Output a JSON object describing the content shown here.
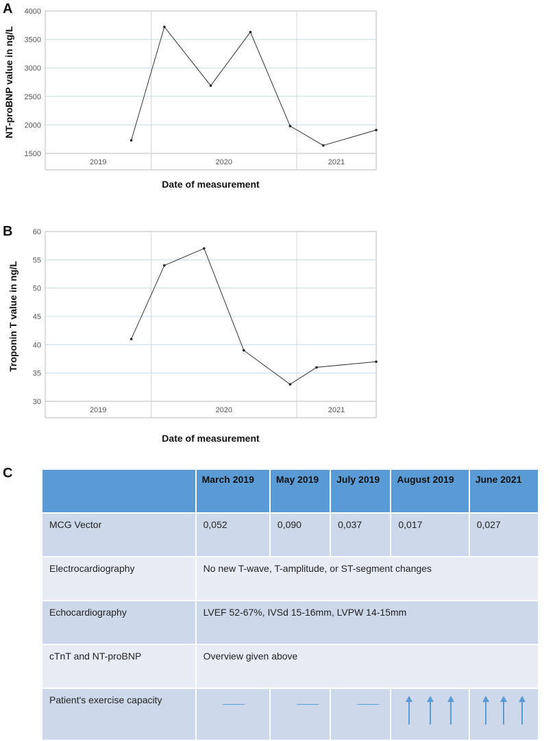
{
  "panels": {
    "a": "A",
    "b": "B",
    "c": "C"
  },
  "chart_data": [
    {
      "type": "line",
      "ylabel": "NT-proBNP value in ng/L",
      "xlabel": "Date of measurement",
      "ylim": [
        1500,
        4000
      ],
      "yticks": [
        1500,
        2000,
        2500,
        3000,
        3500,
        4000
      ],
      "xlim": [
        2019.0,
        2021.5
      ],
      "year_sections": [
        {
          "label": "2019",
          "start": 2019.0,
          "end": 2019.8
        },
        {
          "label": "2020",
          "start": 2019.8,
          "end": 2020.9
        },
        {
          "label": "2021",
          "start": 2020.9,
          "end": 2021.5
        }
      ],
      "x": [
        2019.65,
        2019.9,
        2020.25,
        2020.55,
        2020.85,
        2021.1,
        2021.5
      ],
      "values": [
        1730,
        3720,
        2690,
        3630,
        1980,
        1640,
        1910
      ],
      "grid": true
    },
    {
      "type": "line",
      "ylabel": "Troponin T value in ng/L",
      "xlabel": "Date of measurement",
      "ylim": [
        30,
        60
      ],
      "yticks": [
        30,
        35,
        40,
        45,
        50,
        55,
        60
      ],
      "xlim": [
        2019.0,
        2021.5
      ],
      "year_sections": [
        {
          "label": "2019",
          "start": 2019.0,
          "end": 2019.8
        },
        {
          "label": "2020",
          "start": 2019.8,
          "end": 2020.9
        },
        {
          "label": "2021",
          "start": 2020.9,
          "end": 2021.5
        }
      ],
      "x": [
        2019.65,
        2019.9,
        2020.2,
        2020.5,
        2020.85,
        2021.05,
        2021.5
      ],
      "values": [
        41,
        54,
        57,
        39,
        33,
        36,
        37
      ],
      "grid": true
    }
  ],
  "table": {
    "headers": [
      "",
      "March 2019",
      "May 2019",
      "July 2019",
      "August 2019",
      "June 2021"
    ],
    "mcg": {
      "label": "MCG Vector",
      "values": [
        "0,052",
        "0,090",
        "0,037",
        "0,017",
        "0,027"
      ]
    },
    "ecg": {
      "label": "Electrocardiography",
      "text": "No new T-wave, T-amplitude, or ST-segment changes"
    },
    "echo": {
      "label": "Echocardiography",
      "text": "LVEF 52-67%, IVSd 15-16mm, LVPW 14-15mm"
    },
    "ctnt": {
      "label": "cTnT and NT-proBNP",
      "text": "Overview given above"
    },
    "exercise": {
      "label": "Patient's exercise capacity",
      "values": [
        "unchanged",
        "unchanged",
        "unchanged",
        "increased",
        "increased"
      ]
    }
  }
}
